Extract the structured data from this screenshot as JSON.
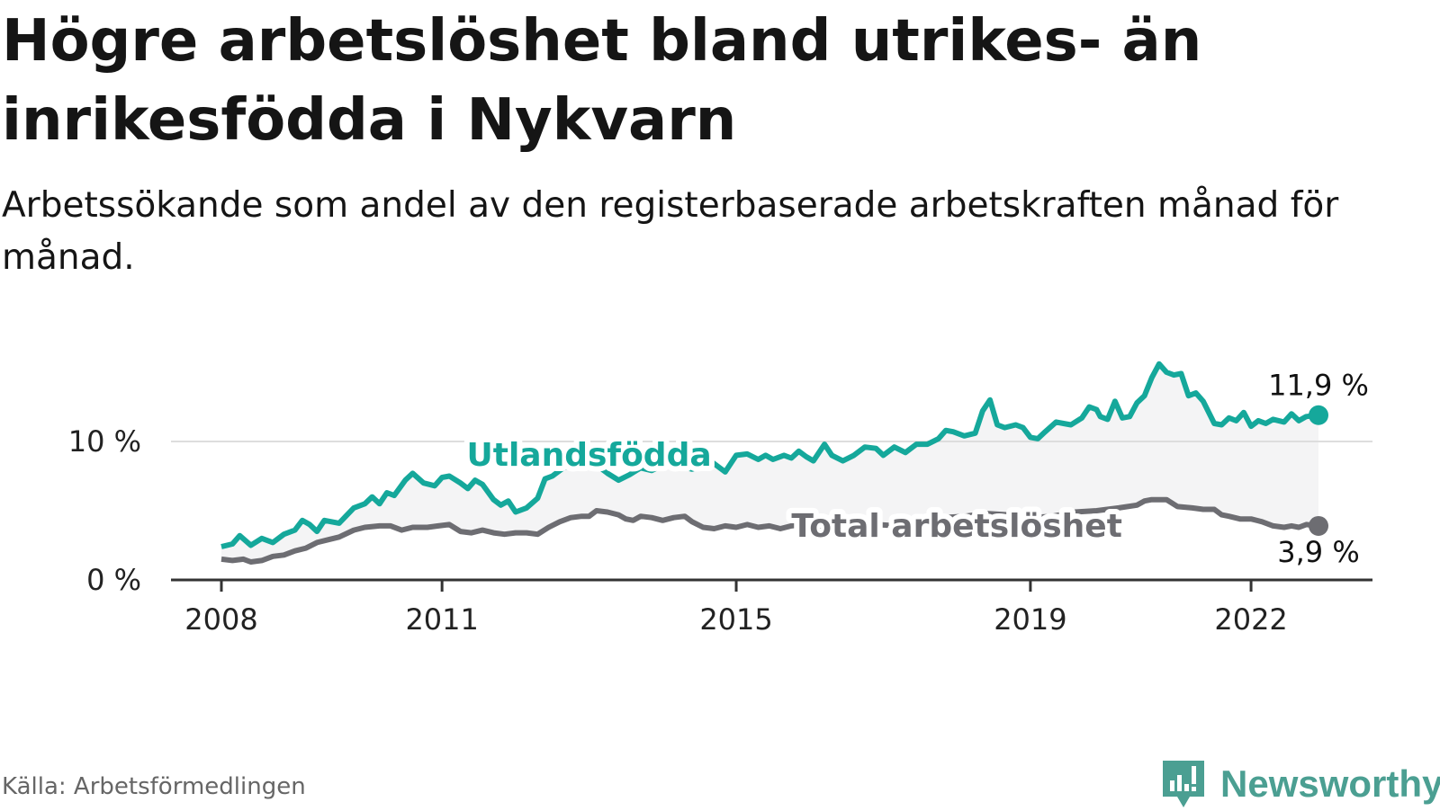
{
  "title": "Högre arbetslöshet bland utrikes- än inrikesfödda i Nykvarn",
  "subtitle": "Arbetssökande som andel av den registerbaserade arbetskraften månad för månad.",
  "source": "Källa: Arbetsförmedlingen",
  "brand": "Newsworthy",
  "colors": {
    "foreign": "#15a89b",
    "total": "#6d6d72",
    "area": "#f4f4f5",
    "axis": "#333333",
    "grid": "#dddddd",
    "brand": "#4b9f92"
  },
  "chart_data": {
    "type": "line",
    "title": "Högre arbetslöshet bland utrikes- än inrikesfödda i Nykvarn",
    "xlabel": "",
    "ylabel": "",
    "x_range": [
      2008.0,
      2022.917
    ],
    "ylim": [
      0,
      16
    ],
    "y_ticks": [
      {
        "value": 0,
        "label": "0 %"
      },
      {
        "value": 10,
        "label": "10 %"
      }
    ],
    "x_ticks": [
      {
        "value": 2008,
        "label": "2008"
      },
      {
        "value": 2011,
        "label": "2011"
      },
      {
        "value": 2015,
        "label": "2015"
      },
      {
        "value": 2019,
        "label": "2019"
      },
      {
        "value": 2022,
        "label": "2022"
      }
    ],
    "series": [
      {
        "name": "Utlandsfödda",
        "label": "Utlandsfödda",
        "end_label": "11,9 %",
        "points": [
          [
            2008.0,
            2.4
          ],
          [
            2008.15,
            2.6
          ],
          [
            2008.25,
            3.2
          ],
          [
            2008.4,
            2.5
          ],
          [
            2008.55,
            3.0
          ],
          [
            2008.7,
            2.7
          ],
          [
            2008.85,
            3.3
          ],
          [
            2009.0,
            3.6
          ],
          [
            2009.1,
            4.3
          ],
          [
            2009.2,
            4.0
          ],
          [
            2009.3,
            3.5
          ],
          [
            2009.4,
            4.3
          ],
          [
            2009.6,
            4.1
          ],
          [
            2009.8,
            5.2
          ],
          [
            2009.95,
            5.5
          ],
          [
            2010.05,
            6.0
          ],
          [
            2010.15,
            5.5
          ],
          [
            2010.25,
            6.3
          ],
          [
            2010.35,
            6.1
          ],
          [
            2010.5,
            7.2
          ],
          [
            2010.6,
            7.7
          ],
          [
            2010.75,
            7.0
          ],
          [
            2010.9,
            6.8
          ],
          [
            2011.0,
            7.4
          ],
          [
            2011.1,
            7.5
          ],
          [
            2011.25,
            7.0
          ],
          [
            2011.35,
            6.6
          ],
          [
            2011.45,
            7.2
          ],
          [
            2011.55,
            6.9
          ],
          [
            2011.7,
            5.8
          ],
          [
            2011.8,
            5.4
          ],
          [
            2011.9,
            5.7
          ],
          [
            2012.0,
            4.9
          ],
          [
            2012.15,
            5.2
          ],
          [
            2012.3,
            5.9
          ],
          [
            2012.4,
            7.3
          ],
          [
            2012.5,
            7.5
          ],
          [
            2012.65,
            8.1
          ],
          [
            2012.8,
            8.4
          ],
          [
            2012.95,
            8.1
          ],
          [
            2013.1,
            8.3
          ],
          [
            2013.25,
            7.7
          ],
          [
            2013.4,
            7.2
          ],
          [
            2013.55,
            7.6
          ],
          [
            2013.7,
            8.1
          ],
          [
            2013.85,
            7.9
          ],
          [
            2014.0,
            8.3
          ],
          [
            2014.1,
            8.5
          ],
          [
            2014.25,
            8.2
          ],
          [
            2014.4,
            8.0
          ],
          [
            2014.5,
            8.2
          ],
          [
            2014.65,
            8.6
          ],
          [
            2014.85,
            7.8
          ],
          [
            2015.0,
            9.0
          ],
          [
            2015.15,
            9.1
          ],
          [
            2015.3,
            8.7
          ],
          [
            2015.4,
            9.0
          ],
          [
            2015.5,
            8.7
          ],
          [
            2015.65,
            9.0
          ],
          [
            2015.75,
            8.8
          ],
          [
            2015.85,
            9.3
          ],
          [
            2015.95,
            8.9
          ],
          [
            2016.05,
            8.6
          ],
          [
            2016.2,
            9.8
          ],
          [
            2016.3,
            9.0
          ],
          [
            2016.45,
            8.6
          ],
          [
            2016.6,
            9.0
          ],
          [
            2016.75,
            9.6
          ],
          [
            2016.9,
            9.5
          ],
          [
            2017.0,
            9.0
          ],
          [
            2017.15,
            9.6
          ],
          [
            2017.3,
            9.2
          ],
          [
            2017.45,
            9.8
          ],
          [
            2017.6,
            9.8
          ],
          [
            2017.75,
            10.2
          ],
          [
            2017.85,
            10.8
          ],
          [
            2017.95,
            10.7
          ],
          [
            2018.1,
            10.4
          ],
          [
            2018.25,
            10.6
          ],
          [
            2018.35,
            12.2
          ],
          [
            2018.45,
            13.0
          ],
          [
            2018.55,
            11.2
          ],
          [
            2018.65,
            11.0
          ],
          [
            2018.8,
            11.2
          ],
          [
            2018.9,
            11.0
          ],
          [
            2019.0,
            10.3
          ],
          [
            2019.1,
            10.2
          ],
          [
            2019.2,
            10.7
          ],
          [
            2019.35,
            11.4
          ],
          [
            2019.45,
            11.3
          ],
          [
            2019.55,
            11.2
          ],
          [
            2019.7,
            11.7
          ],
          [
            2019.8,
            12.5
          ],
          [
            2019.9,
            12.3
          ],
          [
            2019.95,
            11.8
          ],
          [
            2020.05,
            11.6
          ],
          [
            2020.15,
            12.9
          ],
          [
            2020.25,
            11.7
          ],
          [
            2020.35,
            11.8
          ],
          [
            2020.45,
            12.8
          ],
          [
            2020.55,
            13.3
          ],
          [
            2020.65,
            14.6
          ],
          [
            2020.75,
            15.6
          ],
          [
            2020.85,
            15.0
          ],
          [
            2020.95,
            14.8
          ],
          [
            2021.05,
            14.9
          ],
          [
            2021.15,
            13.3
          ],
          [
            2021.25,
            13.5
          ],
          [
            2021.35,
            12.9
          ],
          [
            2021.5,
            11.3
          ],
          [
            2021.6,
            11.2
          ],
          [
            2021.7,
            11.7
          ],
          [
            2021.8,
            11.5
          ],
          [
            2021.9,
            12.1
          ],
          [
            2022.0,
            11.1
          ],
          [
            2022.1,
            11.5
          ],
          [
            2022.2,
            11.3
          ],
          [
            2022.3,
            11.6
          ],
          [
            2022.45,
            11.4
          ],
          [
            2022.55,
            12.0
          ],
          [
            2022.65,
            11.5
          ],
          [
            2022.75,
            11.8
          ],
          [
            2022.917,
            11.9
          ]
        ]
      },
      {
        "name": "Total arbetslöshet",
        "label": "Total arbetslöshet",
        "end_label": "3,9 %",
        "points": [
          [
            2008.0,
            1.5
          ],
          [
            2008.15,
            1.4
          ],
          [
            2008.3,
            1.5
          ],
          [
            2008.4,
            1.3
          ],
          [
            2008.55,
            1.4
          ],
          [
            2008.7,
            1.7
          ],
          [
            2008.85,
            1.8
          ],
          [
            2009.0,
            2.1
          ],
          [
            2009.15,
            2.3
          ],
          [
            2009.3,
            2.7
          ],
          [
            2009.45,
            2.9
          ],
          [
            2009.6,
            3.1
          ],
          [
            2009.8,
            3.6
          ],
          [
            2009.95,
            3.8
          ],
          [
            2010.15,
            3.9
          ],
          [
            2010.3,
            3.9
          ],
          [
            2010.45,
            3.6
          ],
          [
            2010.6,
            3.8
          ],
          [
            2010.8,
            3.8
          ],
          [
            2010.95,
            3.9
          ],
          [
            2011.1,
            4.0
          ],
          [
            2011.25,
            3.5
          ],
          [
            2011.4,
            3.4
          ],
          [
            2011.55,
            3.6
          ],
          [
            2011.7,
            3.4
          ],
          [
            2011.85,
            3.3
          ],
          [
            2012.0,
            3.4
          ],
          [
            2012.15,
            3.4
          ],
          [
            2012.3,
            3.3
          ],
          [
            2012.45,
            3.8
          ],
          [
            2012.6,
            4.2
          ],
          [
            2012.75,
            4.5
          ],
          [
            2012.9,
            4.6
          ],
          [
            2013.0,
            4.6
          ],
          [
            2013.1,
            5.0
          ],
          [
            2013.25,
            4.9
          ],
          [
            2013.4,
            4.7
          ],
          [
            2013.5,
            4.4
          ],
          [
            2013.6,
            4.3
          ],
          [
            2013.7,
            4.6
          ],
          [
            2013.85,
            4.5
          ],
          [
            2014.0,
            4.3
          ],
          [
            2014.15,
            4.5
          ],
          [
            2014.3,
            4.6
          ],
          [
            2014.4,
            4.2
          ],
          [
            2014.55,
            3.8
          ],
          [
            2014.7,
            3.7
          ],
          [
            2014.85,
            3.9
          ],
          [
            2015.0,
            3.8
          ],
          [
            2015.15,
            4.0
          ],
          [
            2015.3,
            3.8
          ],
          [
            2015.45,
            3.9
          ],
          [
            2015.6,
            3.7
          ],
          [
            2015.75,
            3.9
          ],
          [
            2015.9,
            4.0
          ],
          [
            2016.05,
            3.9
          ],
          [
            2016.3,
            3.8
          ],
          [
            2016.6,
            3.9
          ],
          [
            2016.9,
            4.0
          ],
          [
            2017.2,
            3.9
          ],
          [
            2017.5,
            4.2
          ],
          [
            2017.8,
            4.5
          ],
          [
            2018.1,
            4.6
          ],
          [
            2018.4,
            4.8
          ],
          [
            2018.7,
            4.7
          ],
          [
            2019.0,
            4.5
          ],
          [
            2019.3,
            4.6
          ],
          [
            2019.6,
            4.9
          ],
          [
            2019.9,
            5.0
          ],
          [
            2020.2,
            5.2
          ],
          [
            2020.45,
            5.4
          ],
          [
            2020.55,
            5.7
          ],
          [
            2020.65,
            5.8
          ],
          [
            2020.85,
            5.8
          ],
          [
            2021.0,
            5.3
          ],
          [
            2021.2,
            5.2
          ],
          [
            2021.35,
            5.1
          ],
          [
            2021.5,
            5.1
          ],
          [
            2021.6,
            4.7
          ],
          [
            2021.7,
            4.6
          ],
          [
            2021.85,
            4.4
          ],
          [
            2022.0,
            4.4
          ],
          [
            2022.15,
            4.2
          ],
          [
            2022.3,
            3.9
          ],
          [
            2022.45,
            3.8
          ],
          [
            2022.55,
            3.9
          ],
          [
            2022.65,
            3.8
          ],
          [
            2022.75,
            4.0
          ],
          [
            2022.917,
            3.9
          ]
        ]
      }
    ]
  }
}
